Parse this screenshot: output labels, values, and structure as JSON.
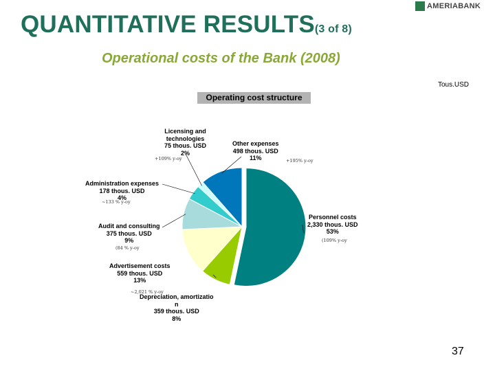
{
  "header": {
    "title_main": "QUANTITATIVE RESULTS",
    "title_suffix": "(3 of 8)",
    "subtitle": "Operational costs of the Bank (2008)",
    "logo_text": "AMERIABANK"
  },
  "unit_label": "Tous.USD",
  "page_number": "37",
  "colors": {
    "title": "#1f6f5a",
    "subtitle": "#8aa836",
    "logo": "#2b7a4b"
  },
  "chart_data": {
    "type": "pie",
    "title": "Operating cost structure",
    "unit": "thous. USD",
    "slices": [
      {
        "name": "Personnel costs",
        "value": 2330,
        "percent": 53,
        "color": "#008080",
        "lines": [
          "Personnel costs",
          "2,330 thous. USD",
          "53%"
        ],
        "note": "(109% y-oy"
      },
      {
        "name": "Depreciation, amortization",
        "value": 359,
        "percent": 8,
        "color": "#99cc00",
        "lines": [
          "Depreciation, amortizatio",
          "n",
          "359 thous. USD",
          "8%"
        ],
        "note": "~2,021 % y-oy"
      },
      {
        "name": "Advertisement costs",
        "value": 559,
        "percent": 13,
        "color": "#ffffcc",
        "lines": [
          "Advertisement costs",
          "559 thous. USD",
          "13%"
        ],
        "note": ""
      },
      {
        "name": "Audit and consulting",
        "value": 375,
        "percent": 9,
        "color": "#a8dcdc",
        "lines": [
          "Audit and consulting",
          "375 thous. USD",
          "9%"
        ],
        "note": "(84 % y-oy"
      },
      {
        "name": "Administration expenses",
        "value": 178,
        "percent": 4,
        "color": "#33cccc",
        "lines": [
          "Administration expenses",
          "178 thous. USD",
          "4%"
        ],
        "note": "~133 % y-oy"
      },
      {
        "name": "Licensing and technologies",
        "value": 75,
        "percent": 2,
        "color": "#ccffff",
        "lines": [
          "Licensing and",
          "technologies",
          "75 thous. USD",
          "2%"
        ],
        "note": "+109% y-oy"
      },
      {
        "name": "Other expenses",
        "value": 498,
        "percent": 11,
        "color": "#0077bb",
        "lines": [
          "Other expenses",
          "498 thous. USD",
          "11%"
        ],
        "note": "+195% y-oy"
      }
    ]
  }
}
